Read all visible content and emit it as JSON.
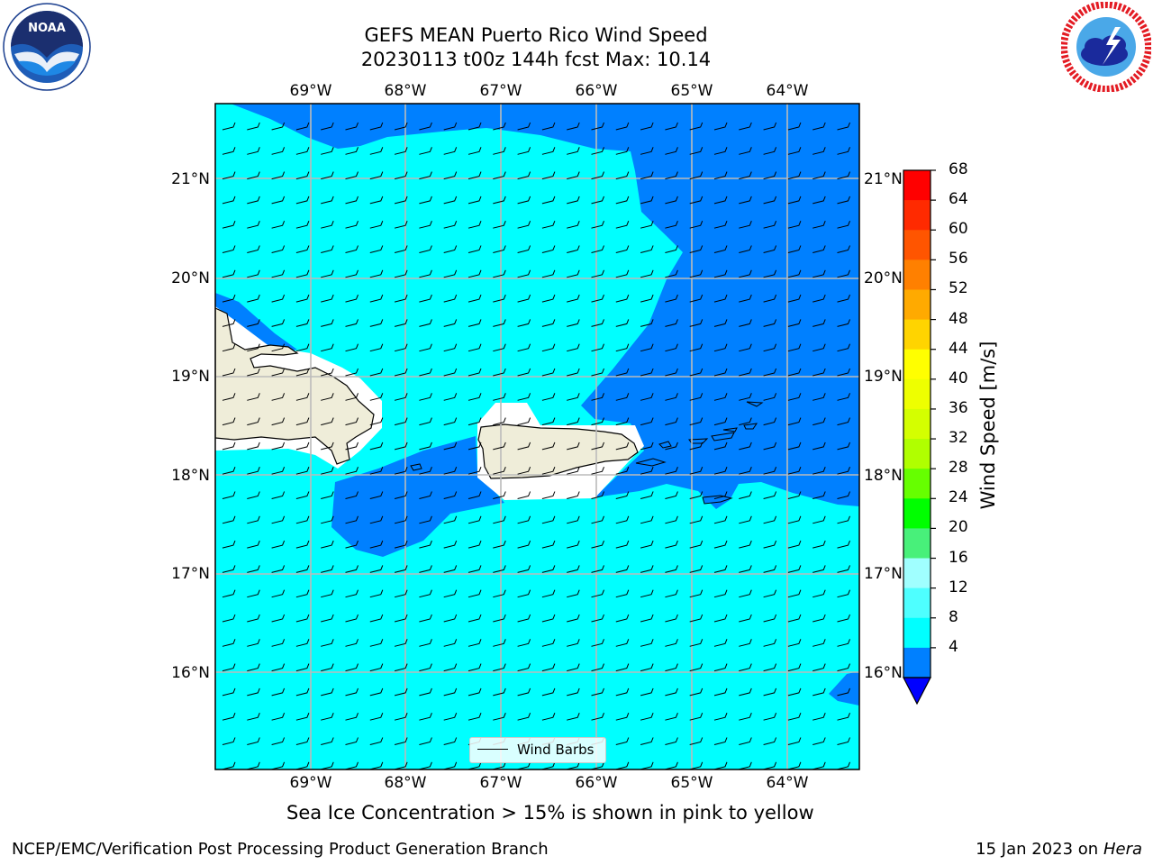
{
  "title": {
    "line1": "GEFS MEAN Puerto Rico Wind Speed",
    "line2": "20230113 t00z 144h fcst   Max: 10.14"
  },
  "map": {
    "longitude_ticks": [
      "69°W",
      "68°W",
      "67°W",
      "66°W",
      "65°W",
      "64°W"
    ],
    "latitude_ticks": [
      "21°N",
      "20°N",
      "19°N",
      "18°N",
      "17°N",
      "16°N"
    ],
    "legend_label": "Wind Barbs",
    "colors": {
      "land": "#efedd9",
      "light_wind": "#00ffff",
      "moderate_wind": "#0080ff",
      "gridline": "#bbbbbb"
    }
  },
  "colorbar": {
    "title": "Wind Speed [m/s]",
    "labels": [
      "68",
      "64",
      "60",
      "56",
      "52",
      "48",
      "44",
      "40",
      "36",
      "32",
      "28",
      "24",
      "20",
      "16",
      "12",
      "8",
      "4"
    ],
    "bands": [
      "#ff0000",
      "#ff2a00",
      "#ff5500",
      "#ff8000",
      "#ffaa00",
      "#ffd400",
      "#ffff00",
      "#eeff00",
      "#d4ff00",
      "#b0ff00",
      "#66ff00",
      "#00ff00",
      "#48f07a",
      "#a0ffff",
      "#4effff",
      "#00ffff",
      "#0080ff"
    ],
    "under_color": "#0000ff"
  },
  "note": "Sea Ice Concentration > 15% is shown in pink to yellow",
  "footer": {
    "left": "NCEP/EMC/Verification Post Processing Product Generation Branch",
    "right_date": "15 Jan 2023 on",
    "right_system": "Hera"
  }
}
